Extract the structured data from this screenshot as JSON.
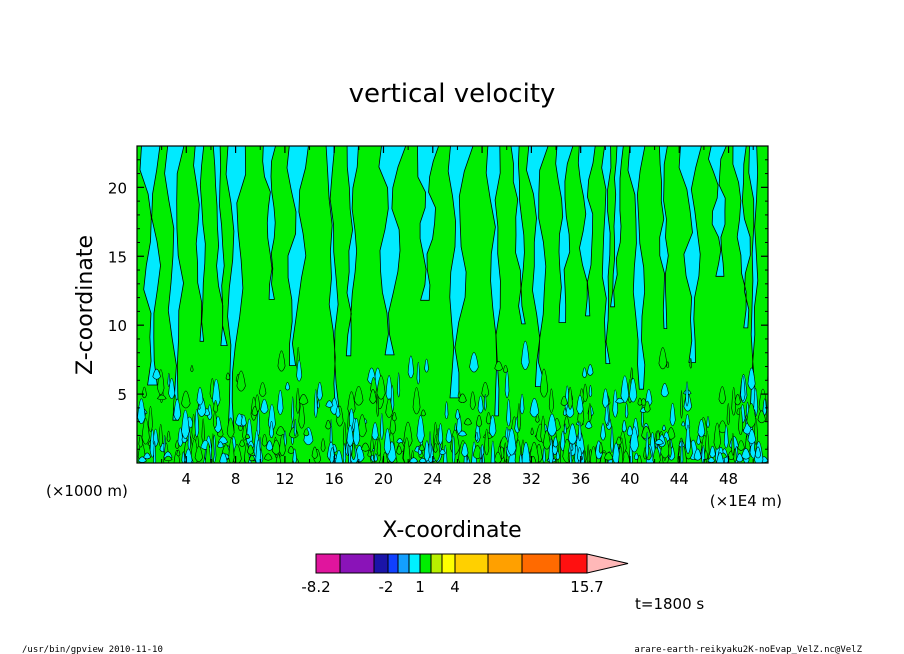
{
  "chart_data": {
    "type": "heatmap",
    "title": "vertical velocity",
    "xlabel": "X-coordinate",
    "ylabel": "Z-coordinate",
    "x_unit_left": "(×1000 m)",
    "x_unit_right": "(×1E4 m)",
    "xlim": [
      0,
      51.2
    ],
    "ylim": [
      0,
      23
    ],
    "x_ticks": [
      "4",
      "8",
      "12",
      "16",
      "20",
      "24",
      "28",
      "32",
      "36",
      "40",
      "44",
      "48"
    ],
    "y_ticks": [
      "5",
      "10",
      "15",
      "20"
    ],
    "colorbar": {
      "labels": [
        "-8.2",
        "-2",
        "1",
        "4",
        "15.7"
      ],
      "colors": [
        "#e0159d",
        "#8a13b8",
        "#1b14a8",
        "#1040ff",
        "#13a0ff",
        "#00f0ff",
        "#00ee00",
        "#b8f000",
        "#ffff00",
        "#ffd000",
        "#ffa000",
        "#ff6a00",
        "#ff1010",
        "#ff7d7d",
        "#ffb8b8"
      ]
    },
    "dominant_colors": {
      "negative": "#00eaff",
      "positive": "#00ee00",
      "contour": "#000000"
    },
    "time_label": "t=1800 s"
  },
  "footer": {
    "left": "/usr/bin/gpview   2010-11-10",
    "right": "arare-earth-reikyaku2K-noEvap_VelZ.nc@VelZ"
  }
}
